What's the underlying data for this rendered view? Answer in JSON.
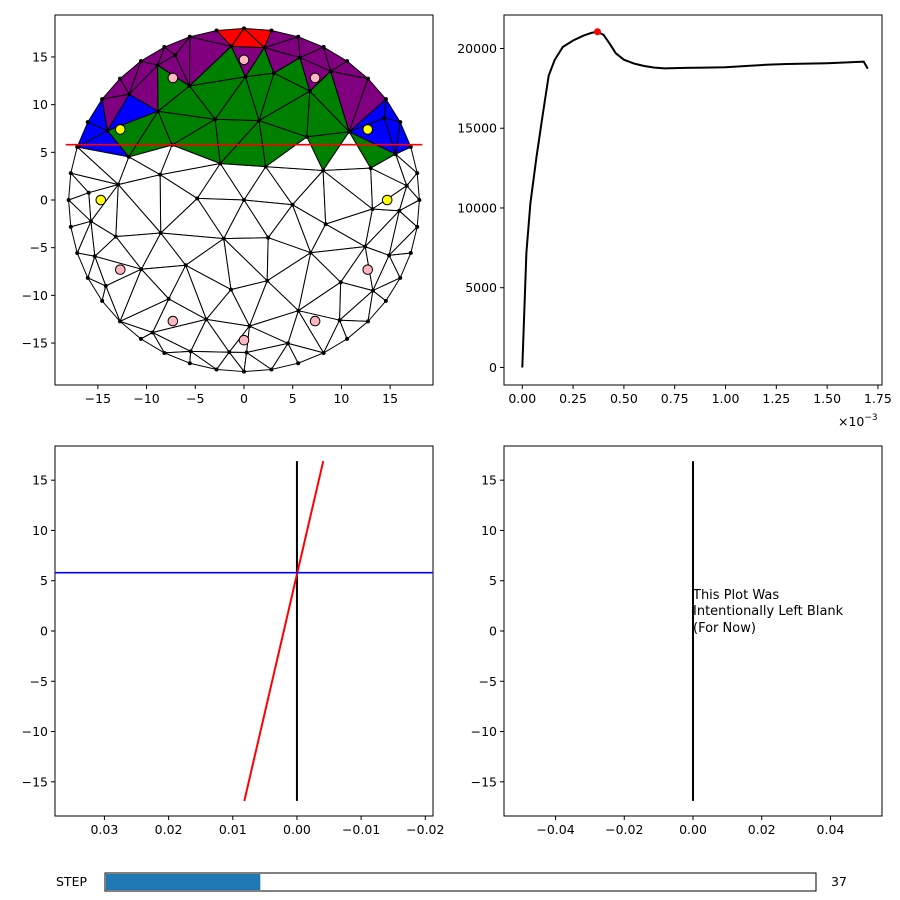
{
  "chart_data": [
    {
      "id": "mesh",
      "type": "mesh",
      "title": "",
      "xlim": [
        -19.4,
        19.4
      ],
      "ylim": [
        -19.4,
        19.4
      ],
      "xticks": [
        -15,
        -10,
        -5,
        0,
        5,
        10,
        15
      ],
      "yticks": [
        -15,
        -10,
        -5,
        0,
        5,
        10,
        15
      ],
      "radius": 18,
      "neutral_axis_y": 5.8,
      "region_colors": {
        "compression": "#008000",
        "steel_top": "#800080",
        "steel_side": "#0000ff",
        "crushed": "#ff0000",
        "line": "#ff0000"
      },
      "rebar_points": [
        {
          "x": 0,
          "y": 14.7,
          "color": "#ffb6c1"
        },
        {
          "x": -7.3,
          "y": 12.8,
          "color": "#ffb6c1"
        },
        {
          "x": 7.3,
          "y": 12.8,
          "color": "#ffb6c1"
        },
        {
          "x": -12.7,
          "y": 7.4,
          "color": "#ffff00"
        },
        {
          "x": 12.7,
          "y": 7.4,
          "color": "#ffff00"
        },
        {
          "x": -14.7,
          "y": 0,
          "color": "#ffff00"
        },
        {
          "x": 14.7,
          "y": 0,
          "color": "#ffff00"
        },
        {
          "x": -12.7,
          "y": -7.3,
          "color": "#ffb6c1"
        },
        {
          "x": 12.7,
          "y": -7.3,
          "color": "#ffb6c1"
        },
        {
          "x": -7.3,
          "y": -12.7,
          "color": "#ffb6c1"
        },
        {
          "x": 7.3,
          "y": -12.7,
          "color": "#ffb6c1"
        },
        {
          "x": 0,
          "y": -14.7,
          "color": "#ffb6c1"
        }
      ]
    },
    {
      "id": "moment-curvature",
      "type": "line",
      "xlim": [
        -9e-05,
        0.00177
      ],
      "ylim": [
        -1100,
        22100
      ],
      "xticks": [
        0,
        0.00025,
        0.0005,
        0.00075,
        0.001,
        0.00125,
        0.0015,
        0.00175
      ],
      "xtick_labels": [
        "0.00",
        "0.25",
        "0.50",
        "0.75",
        "1.00",
        "1.25",
        "1.50",
        "1.75"
      ],
      "yticks": [
        0,
        5000,
        10000,
        15000,
        20000
      ],
      "offset_label": "×10",
      "offset_exponent": "−3",
      "x": [
        0,
        2e-05,
        4e-05,
        7e-05,
        0.0001,
        0.00013,
        0.00016,
        0.0002,
        0.00025,
        0.0003,
        0.00034,
        0.00037,
        0.0004,
        0.00043,
        0.00046,
        0.0005,
        0.00055,
        0.0006,
        0.00065,
        0.0007,
        0.00075,
        0.0008,
        0.0009,
        0.001,
        0.0011,
        0.0012,
        0.0013,
        0.0014,
        0.0015,
        0.0016,
        0.00168,
        0.0017
      ],
      "y": [
        0,
        7200,
        10300,
        13200,
        15800,
        18300,
        19300,
        20100,
        20500,
        20800,
        20980,
        21050,
        20850,
        20300,
        19700,
        19300,
        19050,
        18900,
        18800,
        18750,
        18770,
        18780,
        18800,
        18820,
        18900,
        18980,
        19030,
        19050,
        19080,
        19130,
        19180,
        18730
      ],
      "series_color": "#000000",
      "marker": {
        "x": 0.00037,
        "y": 21050,
        "color": "#ff0000"
      }
    },
    {
      "id": "strain-profile",
      "type": "line",
      "x_inverted": true,
      "xlim": [
        0.0377,
        -0.0212
      ],
      "ylim": [
        -18.4,
        18.4
      ],
      "xticks": [
        0.03,
        0.02,
        0.01,
        0.0,
        -0.01,
        -0.02
      ],
      "xtick_labels": [
        "0.03",
        "0.02",
        "0.01",
        "0.00",
        "−0.01",
        "−0.02"
      ],
      "yticks": [
        -15,
        -10,
        -5,
        0,
        5,
        10,
        15
      ],
      "series": [
        {
          "name": "axis",
          "color": "#000000",
          "x": [
            0,
            0
          ],
          "y": [
            -16.9,
            16.9
          ]
        },
        {
          "name": "strain",
          "color": "#ff0000",
          "x": [
            0.0082,
            -0.0041
          ],
          "y": [
            -16.9,
            16.9
          ]
        },
        {
          "name": "neutral-axis",
          "color": "#0000ff",
          "hline": 5.8
        }
      ]
    },
    {
      "id": "blank-plot",
      "type": "line",
      "xlim": [
        -0.055,
        0.055
      ],
      "ylim": [
        -18.4,
        18.4
      ],
      "xticks": [
        -0.04,
        -0.02,
        0.0,
        0.02,
        0.04
      ],
      "xtick_labels": [
        "−0.04",
        "−0.02",
        "0.00",
        "0.02",
        "0.04"
      ],
      "yticks": [
        -15,
        -10,
        -5,
        0,
        5,
        10,
        15
      ],
      "series": [
        {
          "name": "axis",
          "color": "#000000",
          "x": [
            0,
            0
          ],
          "y": [
            -16.9,
            16.9
          ]
        }
      ],
      "annotation": [
        "This Plot Was",
        "Intentionally Left Blank",
        "(For Now)"
      ]
    }
  ],
  "slider": {
    "label": "STEP",
    "value": 37,
    "value_text": "37",
    "min": 0,
    "max": 170,
    "fill_color": "#1f77b4"
  }
}
